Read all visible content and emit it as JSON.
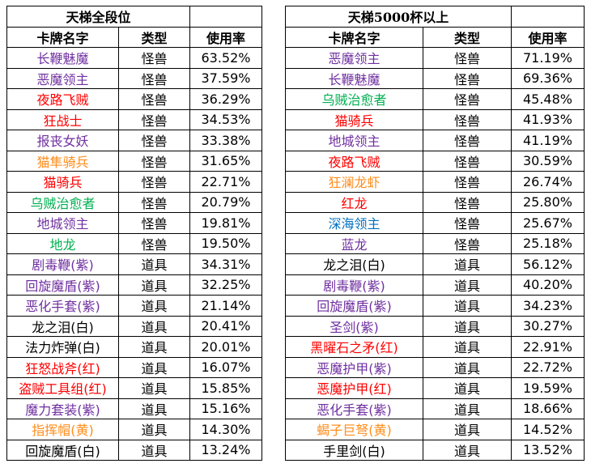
{
  "left": {
    "title": "天梯全段位",
    "headers": [
      "卡牌名字",
      "类型",
      "使用率"
    ],
    "rows": [
      {
        "name": "长鞭魅魔",
        "type": "怪兽",
        "rate": "63.52%",
        "color": "#7030a0"
      },
      {
        "name": "恶魔领主",
        "type": "怪兽",
        "rate": "37.59%",
        "color": "#7030a0"
      },
      {
        "name": "夜路飞贼",
        "type": "怪兽",
        "rate": "36.29%",
        "color": "#ff0000"
      },
      {
        "name": "狂战士",
        "type": "怪兽",
        "rate": "34.53%",
        "color": "#ff0000"
      },
      {
        "name": "报丧女妖",
        "type": "怪兽",
        "rate": "33.38%",
        "color": "#7030a0"
      },
      {
        "name": "猫隼骑兵",
        "type": "怪兽",
        "rate": "31.65%",
        "color": "#ff8c1a"
      },
      {
        "name": "猫骑兵",
        "type": "怪兽",
        "rate": "22.71%",
        "color": "#ff0000"
      },
      {
        "name": "乌贼治愈者",
        "type": "怪兽",
        "rate": "20.79%",
        "color": "#00b050"
      },
      {
        "name": "地城领主",
        "type": "怪兽",
        "rate": "19.81%",
        "color": "#7030a0"
      },
      {
        "name": "地龙",
        "type": "怪兽",
        "rate": "19.50%",
        "color": "#00b050"
      },
      {
        "name": "剧毒鞭(紫)",
        "type": "道具",
        "rate": "34.31%",
        "color": "#7030a0"
      },
      {
        "name": "回旋魔盾(紫)",
        "type": "道具",
        "rate": "32.25%",
        "color": "#7030a0"
      },
      {
        "name": "恶化手套(紫)",
        "type": "道具",
        "rate": "21.14%",
        "color": "#7030a0"
      },
      {
        "name": "龙之泪(白)",
        "type": "道具",
        "rate": "20.41%",
        "color": "#000000"
      },
      {
        "name": "法力炸弹(白)",
        "type": "道具",
        "rate": "20.01%",
        "color": "#000000"
      },
      {
        "name": "狂怒战斧(红)",
        "type": "道具",
        "rate": "16.07%",
        "color": "#ff0000"
      },
      {
        "name": "盗贼工具组(红)",
        "type": "道具",
        "rate": "15.85%",
        "color": "#ff0000"
      },
      {
        "name": "魔力套装(紫)",
        "type": "道具",
        "rate": "15.16%",
        "color": "#7030a0"
      },
      {
        "name": "指挥帽(黄)",
        "type": "道具",
        "rate": "14.30%",
        "color": "#ff8c1a"
      },
      {
        "name": "回旋魔盾(白)",
        "type": "道具",
        "rate": "13.24%",
        "color": "#000000"
      }
    ]
  },
  "right": {
    "title": "天梯5000杯以上",
    "headers": [
      "卡牌名字",
      "类型",
      "使用率"
    ],
    "rows": [
      {
        "name": "恶魔领主",
        "type": "怪兽",
        "rate": "71.19%",
        "color": "#7030a0"
      },
      {
        "name": "长鞭魅魔",
        "type": "怪兽",
        "rate": "69.36%",
        "color": "#7030a0"
      },
      {
        "name": "乌贼治愈者",
        "type": "怪兽",
        "rate": "45.48%",
        "color": "#00b050"
      },
      {
        "name": "猫骑兵",
        "type": "怪兽",
        "rate": "41.93%",
        "color": "#ff0000"
      },
      {
        "name": "地城领主",
        "type": "怪兽",
        "rate": "41.19%",
        "color": "#7030a0"
      },
      {
        "name": "夜路飞贼",
        "type": "怪兽",
        "rate": "30.59%",
        "color": "#ff0000"
      },
      {
        "name": "狂澜龙虾",
        "type": "怪兽",
        "rate": "26.74%",
        "color": "#ff8c1a"
      },
      {
        "name": "红龙",
        "type": "怪兽",
        "rate": "25.80%",
        "color": "#ff0000"
      },
      {
        "name": "深海领主",
        "type": "怪兽",
        "rate": "25.67%",
        "color": "#0070c0"
      },
      {
        "name": "蓝龙",
        "type": "怪兽",
        "rate": "25.18%",
        "color": "#7030a0"
      },
      {
        "name": "龙之泪(白)",
        "type": "道具",
        "rate": "56.12%",
        "color": "#000000"
      },
      {
        "name": "剧毒鞭(紫)",
        "type": "道具",
        "rate": "40.20%",
        "color": "#7030a0"
      },
      {
        "name": "回旋魔盾(紫)",
        "type": "道具",
        "rate": "34.23%",
        "color": "#7030a0"
      },
      {
        "name": "圣剑(紫)",
        "type": "道具",
        "rate": "30.27%",
        "color": "#7030a0"
      },
      {
        "name": "黑曜石之矛(红)",
        "type": "道具",
        "rate": "22.91%",
        "color": "#ff0000"
      },
      {
        "name": "恶魔护甲(紫)",
        "type": "道具",
        "rate": "22.72%",
        "color": "#7030a0"
      },
      {
        "name": "恶魔护甲(红)",
        "type": "道具",
        "rate": "19.59%",
        "color": "#ff0000"
      },
      {
        "name": "恶化手套(紫)",
        "type": "道具",
        "rate": "18.66%",
        "color": "#7030a0"
      },
      {
        "name": "蝎子巨弩(黄)",
        "type": "道具",
        "rate": "14.52%",
        "color": "#ff8c1a"
      },
      {
        "name": "手里剑(白)",
        "type": "道具",
        "rate": "13.52%",
        "color": "#000000"
      }
    ]
  }
}
